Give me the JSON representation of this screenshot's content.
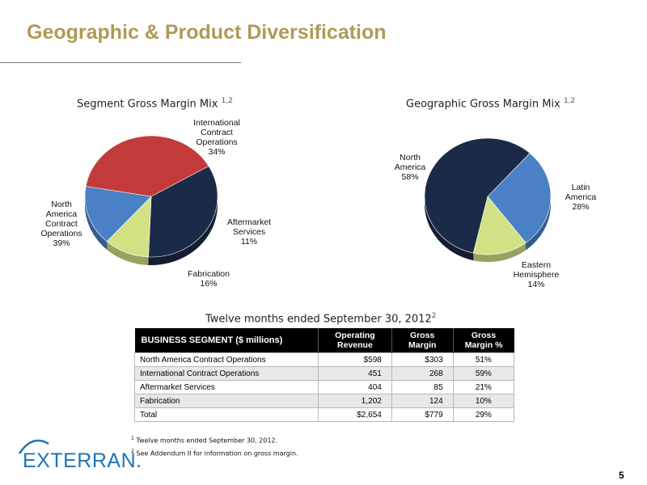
{
  "page": {
    "title": "Geographic & Product Diversification",
    "page_number": "5"
  },
  "colors": {
    "title": "#b09a55",
    "navy": "#1b2a47",
    "red": "#c33a3a",
    "blue": "#4a80c4",
    "green": "#d3e185"
  },
  "chart_data": [
    {
      "type": "pie",
      "title": "Segment Gross Margin Mix",
      "title_sup": "1,2",
      "slices": [
        {
          "label": "International Contract Operations",
          "label_lines": [
            "International",
            "Contract",
            "Operations",
            "34%"
          ],
          "value": 34,
          "color": "#1b2a47"
        },
        {
          "label": "Aftermarket Services",
          "label_lines": [
            "Aftermarket",
            "Services",
            "11%"
          ],
          "value": 11,
          "color": "#d3e185"
        },
        {
          "label": "Fabrication",
          "label_lines": [
            "Fabrication",
            "16%"
          ],
          "value": 16,
          "color": "#4a80c4"
        },
        {
          "label": "North America Contract Operations",
          "label_lines": [
            "North",
            "America",
            "Contract",
            "Operations",
            "39%"
          ],
          "value": 39,
          "color": "#c33a3a"
        }
      ]
    },
    {
      "type": "pie",
      "title": "Geographic Gross Margin Mix",
      "title_sup": "1,2",
      "slices": [
        {
          "label": "Latin America",
          "label_lines": [
            "Latin",
            "America",
            "28%"
          ],
          "value": 28,
          "color": "#4a80c4"
        },
        {
          "label": "Eastern Hemisphere",
          "label_lines": [
            "Eastern",
            "Hemisphere",
            "14%"
          ],
          "value": 14,
          "color": "#d3e185"
        },
        {
          "label": "North America",
          "label_lines": [
            "North",
            "America",
            "58%"
          ],
          "value": 58,
          "color": "#1b2a47"
        }
      ]
    },
    {
      "type": "table",
      "caption": "Twelve months ended September 30, 2012",
      "caption_sup": "2",
      "columns": [
        "BUSINESS SEGMENT ($ millions)",
        "Operating Revenue",
        "Gross Margin",
        "Gross Margin %"
      ],
      "rows": [
        [
          "North America Contract Operations",
          "$598",
          "$303",
          "51%"
        ],
        [
          "International Contract Operations",
          "451",
          "268",
          "59%"
        ],
        [
          "Aftermarket Services",
          "404",
          "85",
          "21%"
        ],
        [
          "Fabrication",
          "1,202",
          "124",
          "10%"
        ],
        [
          "Total",
          "$2,654",
          "$779",
          "29%"
        ]
      ]
    }
  ],
  "table_header": {
    "segment": "BUSINESS SEGMENT  ($ millions)",
    "revenue_1": "Operating",
    "revenue_2": "Revenue",
    "margin_1": "Gross",
    "margin_2": "Margin",
    "pct_1": "Gross",
    "pct_2": "Margin %"
  },
  "footnotes": [
    {
      "num": "1",
      "text": "Twelve months ended September 30, 2012."
    },
    {
      "num": "2",
      "text": "See Addendum II for information on gross margin."
    }
  ],
  "logo": {
    "text": "EXTERRAN."
  }
}
